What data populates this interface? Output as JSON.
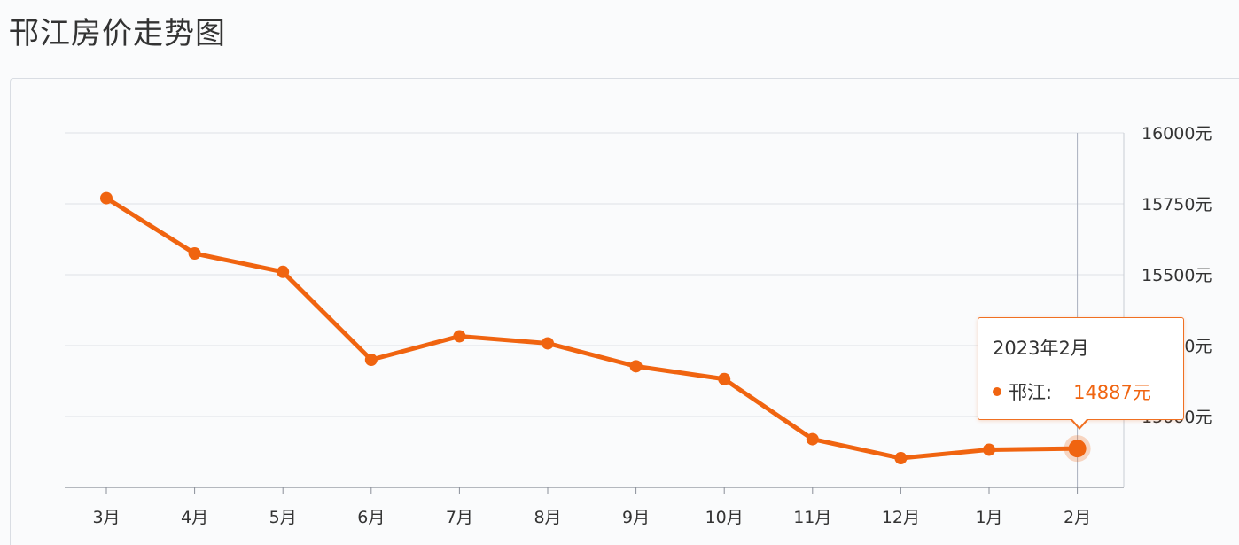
{
  "title": "邗江房价走势图",
  "chart_data": {
    "type": "line",
    "categories": [
      "3月",
      "4月",
      "5月",
      "6月",
      "7月",
      "8月",
      "9月",
      "10月",
      "11月",
      "12月",
      "1月",
      "2月"
    ],
    "series": [
      {
        "name": "邗江",
        "values": [
          15770,
          15575,
          15510,
          15200,
          15283,
          15258,
          15177,
          15132,
          14920,
          14853,
          14883,
          14887
        ],
        "color": "#f06410"
      }
    ],
    "y_ticks": [
      "16000元",
      "15750元",
      "15500元",
      "15250元",
      "15000元"
    ],
    "y_tick_values": [
      16000,
      15750,
      15500,
      15250,
      15000
    ],
    "ylim": [
      14750,
      16000
    ],
    "grid": true,
    "y_axis_position": "right"
  },
  "tooltip": {
    "title": "2023年2月",
    "series_label": "邗江:",
    "value": "14887元",
    "category_index": 11
  }
}
